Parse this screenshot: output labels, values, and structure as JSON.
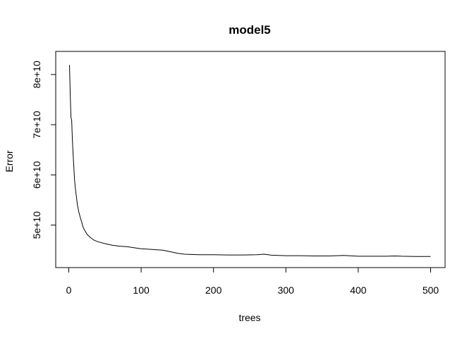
{
  "chart_data": {
    "type": "line",
    "title": "model5",
    "xlabel": "trees",
    "ylabel": "Error",
    "xlim": [
      0,
      500
    ],
    "ylim": [
      43500000000,
      82500000000
    ],
    "x_ticks": [
      0,
      100,
      200,
      300,
      400,
      500
    ],
    "x_tick_labels": [
      "0",
      "100",
      "200",
      "300",
      "400",
      "500"
    ],
    "y_ticks": [
      50000000000,
      60000000000,
      70000000000,
      80000000000
    ],
    "y_tick_labels": [
      "5e+10",
      "6e+10",
      "7e+10",
      "8e+10"
    ],
    "grid": false,
    "legend": "none",
    "colors": {
      "line": "#000000",
      "axis": "#000000",
      "background": "#ffffff"
    },
    "series": [
      {
        "x": [
          1,
          2,
          3,
          4,
          5,
          6,
          7,
          8,
          9,
          10,
          12,
          14,
          16,
          18,
          20,
          25,
          30,
          35,
          40,
          50,
          60,
          70,
          80,
          90,
          100,
          110,
          120,
          130,
          140,
          150,
          160,
          180,
          200,
          220,
          240,
          260,
          270,
          280,
          300,
          320,
          340,
          360,
          370,
          380,
          400,
          420,
          440,
          450,
          460,
          480,
          500
        ],
        "values": [
          81900000000,
          75900000000,
          71500000000,
          70900000000,
          67000000000,
          64000000000,
          61500000000,
          59000000000,
          57500000000,
          56200000000,
          54000000000,
          52500000000,
          51500000000,
          50500000000,
          49500000000,
          48200000000,
          47500000000,
          47000000000,
          46700000000,
          46300000000,
          46000000000,
          45800000000,
          45700000000,
          45500000000,
          45300000000,
          45200000000,
          45100000000,
          45000000000,
          44700000000,
          44400000000,
          44200000000,
          44100000000,
          44100000000,
          44050000000,
          44050000000,
          44100000000,
          44200000000,
          44000000000,
          43900000000,
          43900000000,
          43850000000,
          43850000000,
          43900000000,
          43950000000,
          43800000000,
          43800000000,
          43800000000,
          43850000000,
          43800000000,
          43750000000,
          43750000000
        ]
      }
    ]
  }
}
